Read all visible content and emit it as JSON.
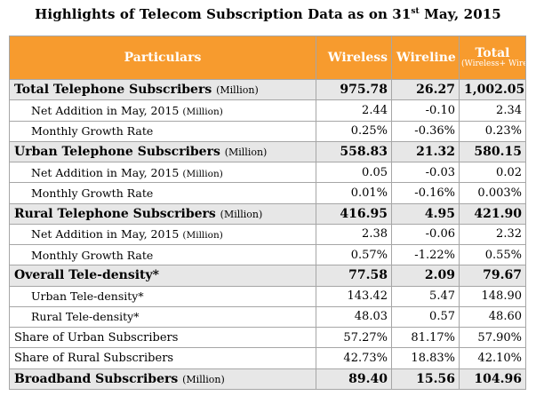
{
  "title": {
    "text_before": "Highlights of Telecom Subscription Data as on 31",
    "superscript": "st",
    "text_after": " May, 2015"
  },
  "header": {
    "particulars": "Particulars",
    "wireless": "Wireless",
    "wireline": "Wireline",
    "total": "Total",
    "total_sub": "(Wireless+ Wireline)"
  },
  "colors": {
    "header_bg": "#f79b2e",
    "header_text": "#ffffff",
    "major_row_bg": "#e7e7e7",
    "border": "#a6a6a6"
  },
  "rows": [
    {
      "style": "major",
      "label": "Total Telephone Subscribers",
      "unit": "(Million)",
      "wireless": "975.78",
      "wireline": "26.27",
      "total": "1,002.05"
    },
    {
      "style": "sub",
      "label": "Net Addition in May, 2015",
      "unit": "(Million)",
      "wireless": "2.44",
      "wireline": "-0.10",
      "total": "2.34"
    },
    {
      "style": "sub",
      "label": "Monthly Growth Rate",
      "unit": "",
      "wireless": "0.25%",
      "wireline": "-0.36%",
      "total": "0.23%"
    },
    {
      "style": "major",
      "label": "Urban Telephone Subscribers",
      "unit": "(Million)",
      "wireless": "558.83",
      "wireline": "21.32",
      "total": "580.15"
    },
    {
      "style": "sub",
      "label": "Net Addition in May, 2015",
      "unit": "(Million)",
      "wireless": "0.05",
      "wireline": "-0.03",
      "total": "0.02"
    },
    {
      "style": "sub",
      "label": "Monthly Growth Rate",
      "unit": "",
      "wireless": "0.01%",
      "wireline": "-0.16%",
      "total": "0.003%"
    },
    {
      "style": "major",
      "label": "Rural Telephone Subscribers",
      "unit": "(Million)",
      "wireless": "416.95",
      "wireline": "4.95",
      "total": "421.90"
    },
    {
      "style": "sub",
      "label": "Net Addition in May, 2015",
      "unit": "(Million)",
      "wireless": "2.38",
      "wireline": "-0.06",
      "total": "2.32"
    },
    {
      "style": "sub",
      "label": "Monthly Growth Rate",
      "unit": "",
      "wireless": "0.57%",
      "wireline": "-1.22%",
      "total": "0.55%"
    },
    {
      "style": "major",
      "label": "Overall Tele-density*",
      "unit": "",
      "wireless": "77.58",
      "wireline": "2.09",
      "total": "79.67"
    },
    {
      "style": "sub",
      "label": "Urban Tele-density*",
      "unit": "",
      "wireless": "143.42",
      "wireline": "5.47",
      "total": "148.90"
    },
    {
      "style": "sub",
      "label": "Rural Tele-density*",
      "unit": "",
      "wireless": "48.03",
      "wireline": "0.57",
      "total": "48.60"
    },
    {
      "style": "plain",
      "label": "Share of Urban Subscribers",
      "unit": "",
      "wireless": "57.27%",
      "wireline": "81.17%",
      "total": "57.90%"
    },
    {
      "style": "plain",
      "label": "Share of Rural Subscribers",
      "unit": "",
      "wireless": "42.73%",
      "wireline": "18.83%",
      "total": "42.10%"
    },
    {
      "style": "major",
      "label": "Broadband Subscribers",
      "unit": "(Million)",
      "wireless": "89.40",
      "wireline": "15.56",
      "total": "104.96"
    }
  ]
}
